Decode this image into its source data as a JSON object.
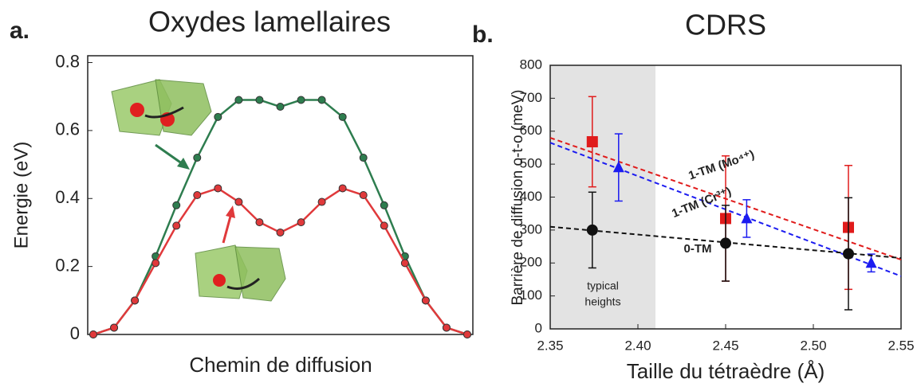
{
  "chart_data": [
    {
      "type": "line",
      "panel": "a.",
      "title": "Oxydes lamellaires",
      "x_label": "Chemin de diffusion",
      "y_label": "Energie (eV)",
      "categories": [
        null,
        null,
        null,
        null,
        null,
        null,
        null,
        null,
        null,
        null,
        null,
        null,
        null,
        null,
        null,
        null,
        null,
        null,
        null
      ],
      "ylim": [
        0,
        0.82
      ],
      "yticks": [
        0,
        0.2,
        0.4,
        0.6,
        0.8
      ],
      "series": [
        {
          "color": "#2e7d4f",
          "values": [
            0,
            0.02,
            0.1,
            0.23,
            0.38,
            0.52,
            0.64,
            0.69,
            0.69,
            0.67,
            0.69,
            0.69,
            0.64,
            0.52,
            0.38,
            0.23,
            0.1,
            0.02,
            0
          ]
        },
        {
          "color": "#e0393b",
          "values": [
            0,
            0.02,
            0.1,
            0.21,
            0.32,
            0.41,
            0.43,
            0.39,
            0.33,
            0.3,
            0.33,
            0.39,
            0.43,
            0.41,
            0.32,
            0.21,
            0.1,
            0.02,
            0
          ]
        }
      ]
    },
    {
      "type": "scatter",
      "panel": "b.",
      "title": "CDRS",
      "x_label": "Taille du tétraèdre (Å)",
      "y_label": "Barrière de diffusion o-t-o (meV)",
      "xlim": [
        2.35,
        2.55
      ],
      "xticks": [
        2.35,
        {
          "value": 2.4,
          "label": "2.40"
        },
        2.45,
        {
          "value": 2.5,
          "label": "2.50"
        },
        2.55
      ],
      "ylim": [
        0,
        800
      ],
      "yticks": [
        0,
        100,
        200,
        300,
        400,
        500,
        600,
        700,
        800
      ],
      "shade": [
        2.35,
        2.41
      ],
      "shade_label": [
        "typical",
        "heights"
      ],
      "series": [
        {
          "name": "1-TM (Mo⁴⁺)",
          "color": "#e01b1b",
          "marker": "square",
          "x": [
            2.374,
            2.45,
            2.52
          ],
          "values": [
            568,
            335,
            308
          ],
          "errors": [
            137,
            190,
            188
          ],
          "fit_x": [
            2.35,
            2.55
          ],
          "fit_y": [
            580,
            210
          ]
        },
        {
          "name": "1-TM (Cr³⁺)",
          "color": "#1b1bf0",
          "marker": "triangle",
          "x": [
            2.389,
            2.462,
            2.533
          ],
          "values": [
            490,
            335,
            200
          ],
          "errors": [
            102,
            57,
            27
          ],
          "fit_x": [
            2.35,
            2.55
          ],
          "fit_y": [
            565,
            160
          ]
        },
        {
          "name": "0-TM",
          "color": "#111111",
          "marker": "circle",
          "x": [
            2.374,
            2.45,
            2.52
          ],
          "values": [
            300,
            260,
            228
          ],
          "errors": [
            115,
            115,
            170
          ],
          "fit_x": [
            2.35,
            2.55
          ],
          "fit_y": [
            310,
            215
          ]
        }
      ]
    }
  ]
}
